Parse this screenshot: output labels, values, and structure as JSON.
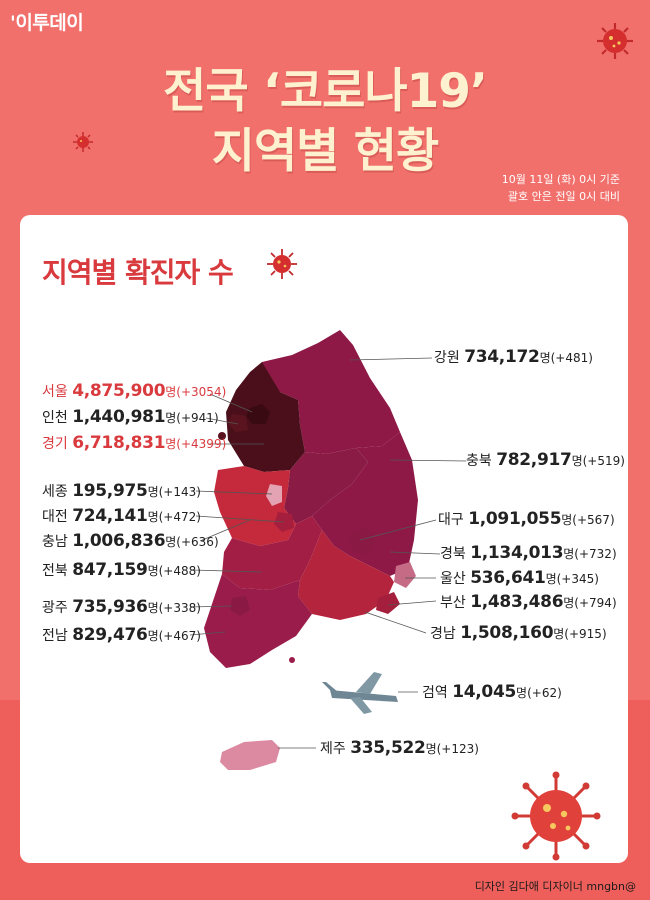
{
  "brand": "'이투데이",
  "headline": {
    "line1": "전국 ‘코로나19’",
    "line2": "지역별 현황"
  },
  "basis": {
    "line1": "10월 11일 (화) 0시 기준",
    "line2": "괄호 안은 전일 0시 대비"
  },
  "card": {
    "title": "지역별 확진자 수"
  },
  "unit": "명",
  "regions": [
    {
      "id": "gangwon",
      "name": "강원",
      "count": "734,172",
      "change": "(+481)",
      "highlight": false
    },
    {
      "id": "seoul",
      "name": "서울",
      "count": "4,875,900",
      "change": "(+3054)",
      "highlight": true
    },
    {
      "id": "incheon",
      "name": "인천",
      "count": "1,440,981",
      "change": "(+941)",
      "highlight": false
    },
    {
      "id": "gyeonggi",
      "name": "경기",
      "count": "6,718,831",
      "change": "(+4399)",
      "highlight": true
    },
    {
      "id": "chungbuk",
      "name": "충북",
      "count": "782,917",
      "change": "(+519)",
      "highlight": false
    },
    {
      "id": "sejong",
      "name": "세종",
      "count": "195,975",
      "change": "(+143)",
      "highlight": false
    },
    {
      "id": "daejeon",
      "name": "대전",
      "count": "724,141",
      "change": "(+472)",
      "highlight": false
    },
    {
      "id": "daegu",
      "name": "대구",
      "count": "1,091,055",
      "change": "(+567)",
      "highlight": false
    },
    {
      "id": "chungnam",
      "name": "충남",
      "count": "1,006,836",
      "change": "(+636)",
      "highlight": false
    },
    {
      "id": "gyeongbuk",
      "name": "경북",
      "count": "1,134,013",
      "change": "(+732)",
      "highlight": false
    },
    {
      "id": "jeonbuk",
      "name": "전북",
      "count": "847,159",
      "change": "(+488)",
      "highlight": false
    },
    {
      "id": "ulsan",
      "name": "울산",
      "count": "536,641",
      "change": "(+345)",
      "highlight": false
    },
    {
      "id": "busan",
      "name": "부산",
      "count": "1,483,486",
      "change": "(+794)",
      "highlight": false
    },
    {
      "id": "gwangju",
      "name": "광주",
      "count": "735,936",
      "change": "(+338)",
      "highlight": false
    },
    {
      "id": "gyeongnam",
      "name": "경남",
      "count": "1,508,160",
      "change": "(+915)",
      "highlight": false
    },
    {
      "id": "jeonnam",
      "name": "전남",
      "count": "829,476",
      "change": "(+467)",
      "highlight": false
    },
    {
      "id": "quarantine",
      "name": "검역",
      "count": "14,045",
      "change": "(+62)",
      "highlight": false
    },
    {
      "id": "jeju",
      "name": "제주",
      "count": "335,522",
      "change": "(+123)",
      "highlight": false
    }
  ],
  "credit": "디자인 김다애 디자이너 mngbn@",
  "colors": {
    "background": "#f1706c",
    "headline": "#fdf1cf",
    "accent": "#d93a3e",
    "map_dark": "#4a0f1a",
    "map_mid": "#8e1946",
    "map_light": "#b4243d"
  }
}
